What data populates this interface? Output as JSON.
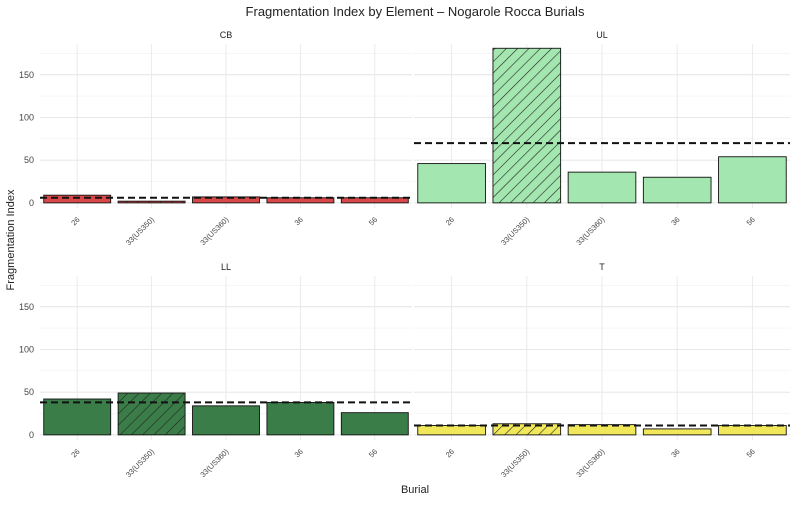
{
  "chart_data": {
    "type": "bar",
    "title": "Fragmentation Index by Element – Nogarole Rocca Burials",
    "xlabel": "Burial",
    "ylabel": "Fragmentation Index",
    "ylim": [
      -6,
      186
    ],
    "yticks": [
      0,
      50,
      100,
      150
    ],
    "grid": true,
    "categories": [
      "26",
      "33(US350)",
      "33(US360)",
      "36",
      "56"
    ],
    "panels": [
      {
        "name": "CB",
        "color": "#d94848",
        "values": [
          9,
          2,
          7,
          6,
          6
        ],
        "hatched_index": 1,
        "reference_line": 6
      },
      {
        "name": "UL",
        "color": "#a3e6b0",
        "values": [
          46,
          181,
          36,
          30,
          54
        ],
        "hatched_index": 1,
        "reference_line": 70
      },
      {
        "name": "LL",
        "color": "#3b7d48",
        "values": [
          42,
          49,
          34,
          38,
          26
        ],
        "hatched_index": 1,
        "reference_line": 38
      },
      {
        "name": "T",
        "color": "#f0e85a",
        "values": [
          11,
          13,
          12,
          7,
          11
        ],
        "hatched_index": 1,
        "reference_line": 11
      }
    ]
  }
}
